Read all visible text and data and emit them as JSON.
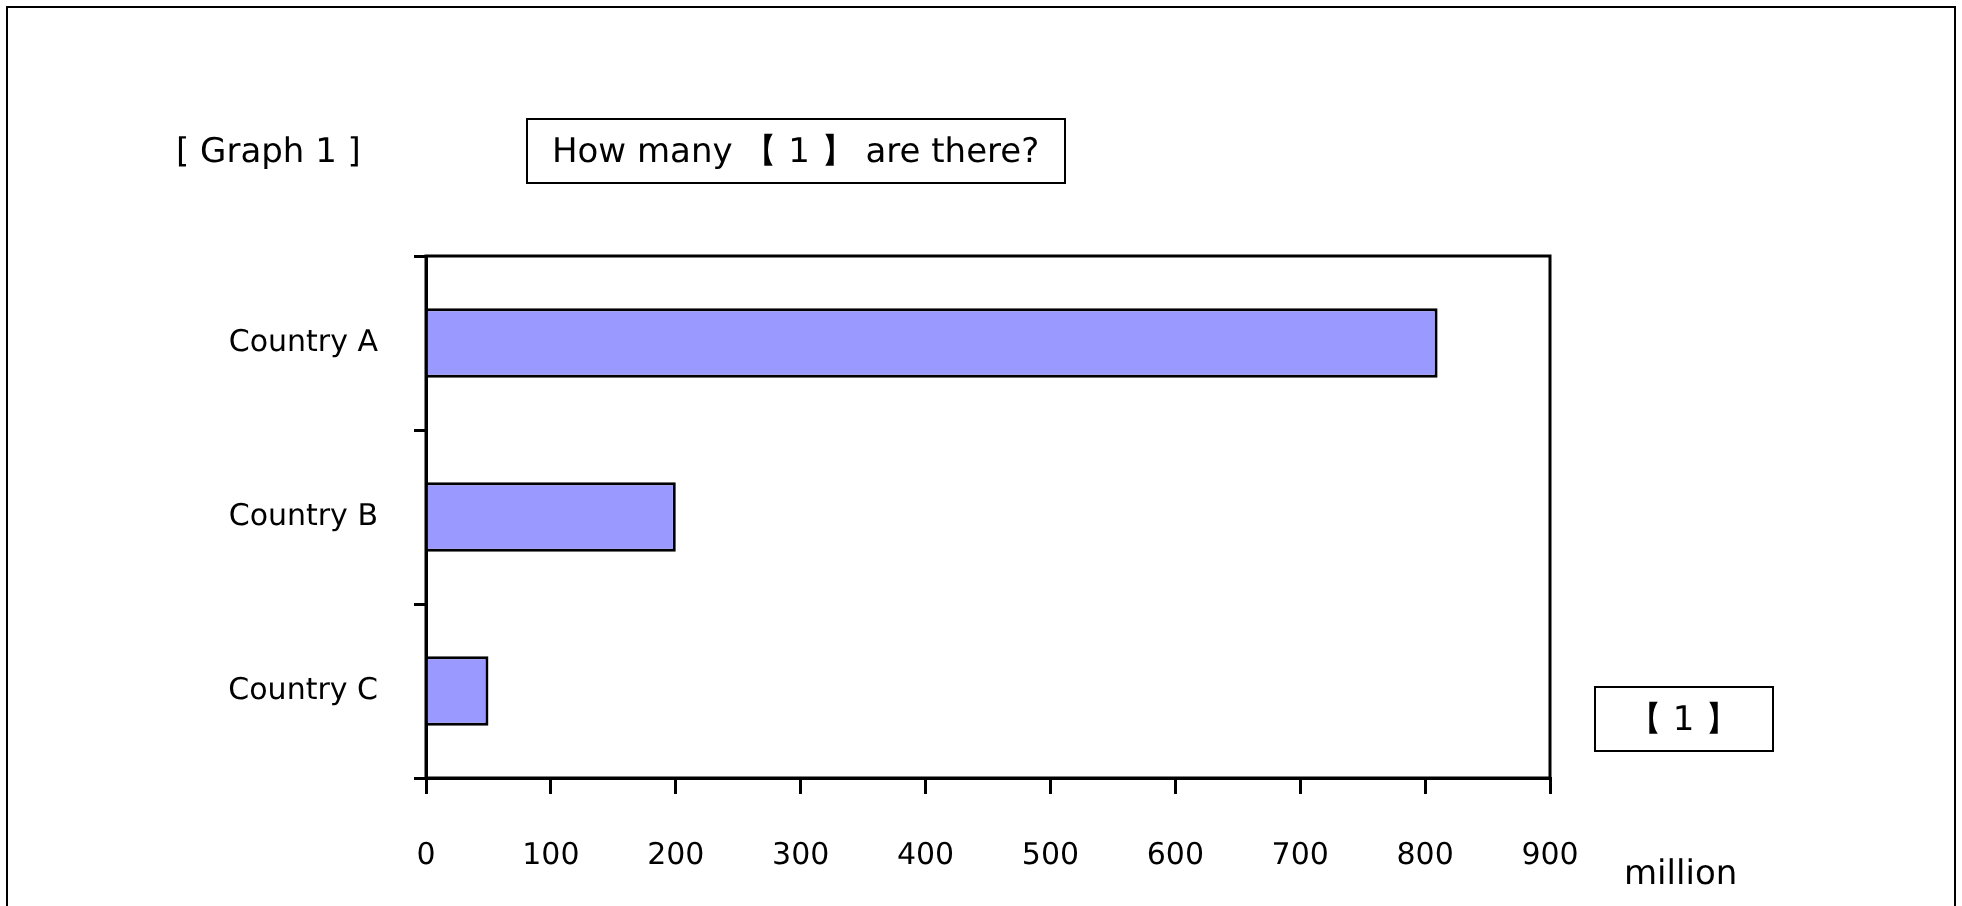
{
  "chart_data": {
    "type": "bar",
    "orientation": "horizontal",
    "title": "[ Graph 1 ]",
    "subtitle": "How many 【 1 】 are there?",
    "xlabel": "million",
    "annotations": [
      "【 1 】"
    ],
    "categories": [
      "Country A",
      "Country B",
      "Country C"
    ],
    "values": [
      810,
      200,
      50
    ],
    "color": "#9999ff",
    "xlim": [
      0,
      900
    ],
    "xticks": [
      0,
      100,
      200,
      300,
      400,
      500,
      600,
      700,
      800,
      900
    ],
    "grid": false
  }
}
